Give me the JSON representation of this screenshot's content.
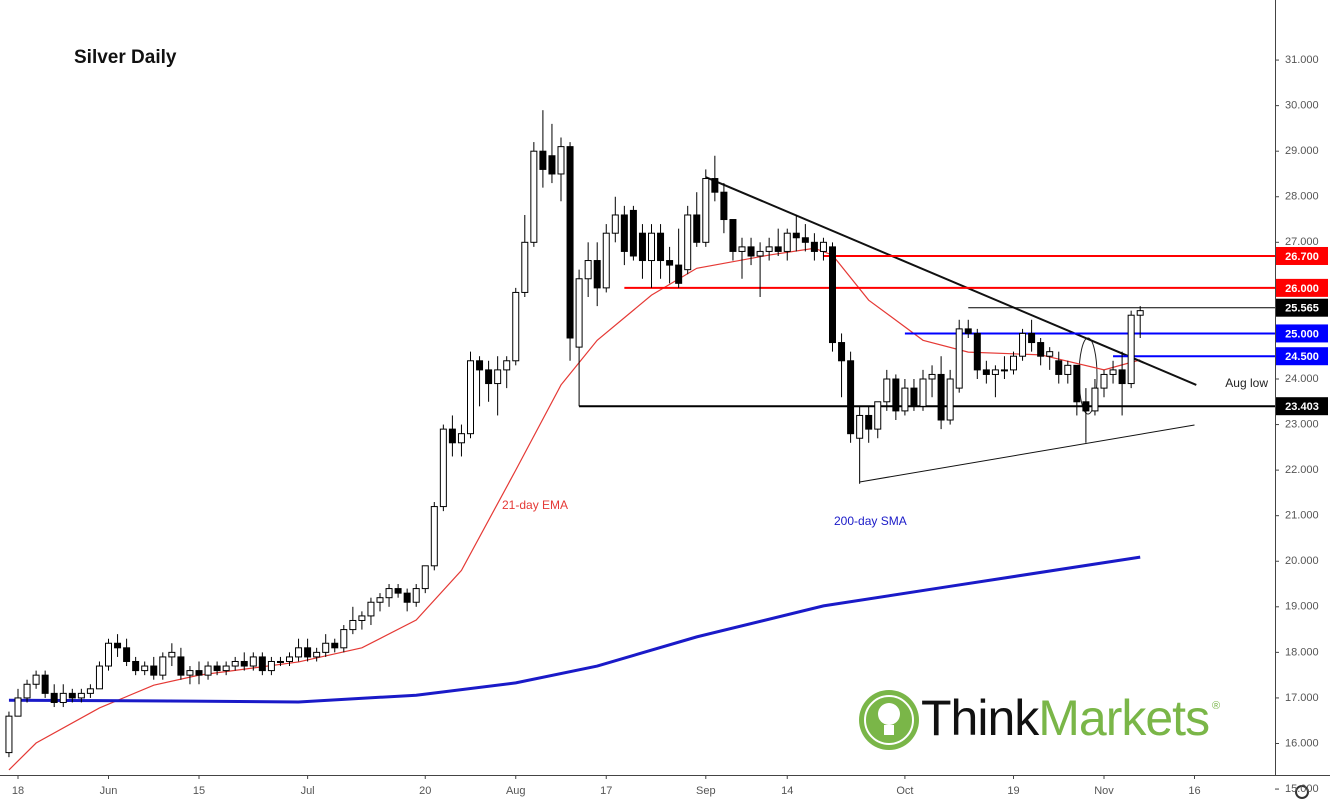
{
  "chart_data": {
    "type": "candlestick",
    "title": "Silver Daily",
    "categories": [
      null,
      "18",
      null,
      null,
      null,
      null,
      null,
      null,
      null,
      null,
      null,
      "Jun",
      null,
      null,
      null,
      null,
      null,
      null,
      null,
      null,
      null,
      "15",
      null,
      null,
      null,
      null,
      null,
      null,
      null,
      null,
      null,
      null,
      null,
      "Jul",
      null,
      null,
      null,
      null,
      null,
      null,
      null,
      null,
      null,
      null,
      null,
      null,
      "20",
      null,
      null,
      null,
      null,
      null,
      null,
      null,
      null,
      null,
      "Aug",
      null,
      null,
      null,
      null,
      null,
      null,
      null,
      null,
      null,
      "17",
      null,
      null,
      null,
      null,
      null,
      null,
      null,
      null,
      null,
      null,
      "Sep",
      null,
      null,
      null,
      null,
      null,
      null,
      null,
      null,
      "14",
      null,
      null,
      null,
      null,
      null,
      null,
      null,
      null,
      null,
      null,
      null,
      null,
      "Oct",
      null,
      null,
      null,
      null,
      null,
      null,
      null,
      null,
      null,
      null,
      null,
      "19",
      null,
      null,
      null,
      null,
      null,
      null,
      null,
      null,
      null,
      "Nov",
      null,
      null,
      null,
      null,
      null,
      null,
      null,
      null,
      null,
      "16"
    ],
    "open": [
      15.8,
      16.6,
      17.0,
      17.3,
      17.5,
      17.1,
      16.9,
      17.1,
      17.0,
      17.1,
      17.2,
      17.7,
      18.2,
      18.1,
      17.8,
      17.6,
      17.7,
      17.5,
      17.9,
      17.9,
      17.5,
      17.6,
      17.5,
      17.7,
      17.6,
      17.7,
      17.8,
      17.7,
      17.9,
      17.6,
      17.8,
      17.8,
      17.9,
      18.1,
      17.9,
      18.0,
      18.2,
      18.1,
      18.5,
      18.7,
      18.8,
      19.1,
      19.2,
      19.4,
      19.3,
      19.1,
      19.4,
      19.9,
      21.2,
      22.9,
      22.6,
      22.8,
      24.4,
      24.2,
      23.9,
      24.2,
      24.4,
      25.9,
      27.0,
      29.0,
      28.9,
      28.5,
      29.1,
      24.7,
      26.2,
      26.6,
      26.0,
      27.2,
      27.6,
      27.7,
      27.2,
      26.6,
      27.2,
      26.6,
      26.5,
      26.4,
      27.6,
      27.0,
      28.4,
      28.1,
      27.5,
      26.8,
      26.9,
      26.7,
      26.8,
      26.9,
      26.8,
      27.2,
      27.1,
      27.0,
      26.8,
      26.9,
      24.8,
      24.4,
      22.7,
      23.2,
      22.9,
      23.5,
      24.0,
      23.3,
      23.8,
      23.4,
      24.0,
      24.1,
      23.1,
      23.8,
      25.1,
      25.0,
      24.2,
      24.1,
      24.2,
      24.2,
      24.5,
      25.0,
      24.8,
      24.5,
      24.4,
      24.1,
      24.3,
      23.5,
      23.3,
      23.8,
      24.1,
      24.2,
      23.9,
      25.4,
      null,
      null,
      null,
      null,
      null,
      null
    ],
    "high": [
      16.7,
      17.2,
      17.4,
      17.6,
      17.6,
      17.3,
      17.3,
      17.2,
      17.2,
      17.3,
      17.8,
      18.3,
      18.4,
      18.3,
      17.9,
      17.8,
      17.9,
      18.0,
      18.2,
      18.1,
      17.7,
      17.8,
      17.8,
      17.8,
      17.8,
      17.9,
      18.0,
      18.0,
      18.0,
      17.9,
      17.9,
      18.0,
      18.3,
      18.3,
      18.1,
      18.4,
      18.3,
      18.6,
      19.0,
      18.9,
      19.2,
      19.3,
      19.5,
      19.5,
      19.4,
      19.5,
      19.9,
      21.3,
      23.0,
      23.2,
      23.0,
      24.6,
      24.5,
      24.4,
      24.5,
      24.5,
      26.0,
      27.6,
      29.2,
      29.9,
      29.6,
      29.3,
      29.2,
      26.4,
      27.0,
      27.0,
      27.4,
      28.0,
      27.8,
      27.8,
      27.4,
      27.4,
      27.4,
      26.9,
      27.3,
      27.8,
      28.1,
      28.6,
      28.9,
      28.3,
      27.5,
      27.1,
      27.1,
      27.0,
      27.1,
      27.3,
      27.3,
      27.6,
      27.4,
      27.2,
      27.1,
      27.0,
      25.0,
      24.6,
      23.4,
      23.4,
      23.5,
      24.2,
      24.1,
      24.0,
      24.0,
      24.2,
      24.3,
      24.5,
      24.2,
      25.3,
      25.3,
      25.1,
      24.4,
      24.3,
      24.5,
      24.6,
      25.1,
      25.3,
      24.9,
      24.7,
      24.6,
      24.4,
      24.3,
      23.8,
      24.0,
      24.2,
      24.4,
      24.6,
      25.5,
      25.6,
      null,
      null,
      null,
      null,
      null,
      null
    ],
    "low": [
      15.7,
      16.6,
      16.9,
      17.2,
      17.0,
      16.8,
      16.8,
      16.9,
      16.9,
      17.0,
      17.2,
      17.6,
      17.9,
      17.7,
      17.5,
      17.5,
      17.4,
      17.4,
      17.7,
      17.4,
      17.3,
      17.3,
      17.4,
      17.5,
      17.5,
      17.6,
      17.6,
      17.6,
      17.5,
      17.5,
      17.7,
      17.7,
      17.8,
      17.8,
      17.8,
      17.9,
      18.0,
      18.0,
      18.4,
      18.5,
      18.6,
      18.9,
      19.0,
      19.2,
      18.9,
      19.0,
      19.3,
      19.8,
      21.1,
      22.3,
      22.3,
      22.7,
      23.4,
      23.5,
      23.2,
      23.8,
      24.3,
      25.8,
      26.9,
      28.2,
      28.3,
      27.9,
      24.4,
      23.403,
      25.8,
      25.6,
      25.9,
      27.0,
      26.5,
      26.6,
      26.2,
      26.0,
      26.2,
      26.1,
      26.0,
      26.3,
      26.9,
      26.9,
      27.9,
      27.2,
      26.6,
      26.2,
      26.5,
      25.8,
      26.6,
      26.7,
      26.6,
      26.8,
      26.8,
      26.6,
      26.6,
      24.6,
      23.6,
      22.6,
      21.7,
      22.6,
      22.7,
      23.3,
      23.1,
      23.2,
      23.3,
      23.3,
      23.6,
      22.9,
      23.0,
      23.7,
      24.9,
      24.0,
      23.9,
      23.6,
      24.0,
      24.1,
      24.4,
      24.6,
      24.3,
      24.2,
      23.9,
      23.9,
      23.2,
      22.6,
      23.2,
      23.6,
      23.9,
      23.2,
      23.8,
      24.9,
      null,
      null,
      null,
      null,
      null,
      null
    ],
    "close": [
      16.6,
      17.0,
      17.3,
      17.5,
      17.1,
      16.9,
      17.1,
      17.0,
      17.1,
      17.2,
      17.7,
      18.2,
      18.1,
      17.8,
      17.6,
      17.7,
      17.5,
      17.9,
      18.0,
      17.5,
      17.6,
      17.5,
      17.7,
      17.6,
      17.7,
      17.8,
      17.7,
      17.9,
      17.6,
      17.8,
      17.8,
      17.9,
      18.1,
      17.9,
      18.0,
      18.2,
      18.1,
      18.5,
      18.7,
      18.8,
      19.1,
      19.2,
      19.4,
      19.3,
      19.1,
      19.4,
      19.9,
      21.2,
      22.9,
      22.6,
      22.8,
      24.4,
      24.2,
      23.9,
      24.2,
      24.4,
      25.9,
      27.0,
      29.0,
      28.6,
      28.5,
      29.1,
      24.9,
      26.2,
      26.6,
      26.0,
      27.2,
      27.6,
      26.8,
      26.7,
      26.6,
      27.2,
      26.6,
      26.5,
      26.1,
      27.6,
      27.0,
      28.4,
      28.1,
      27.5,
      26.8,
      26.9,
      26.7,
      26.8,
      26.9,
      26.8,
      27.2,
      27.1,
      27.0,
      26.8,
      27.0,
      24.8,
      24.4,
      22.8,
      23.2,
      22.9,
      23.5,
      24.0,
      23.3,
      23.8,
      23.4,
      24.0,
      24.1,
      23.1,
      24.0,
      25.1,
      25.0,
      24.2,
      24.1,
      24.2,
      24.2,
      24.5,
      25.0,
      24.8,
      24.5,
      24.6,
      24.1,
      24.3,
      23.5,
      23.3,
      23.8,
      24.1,
      24.2,
      23.9,
      25.4,
      25.5,
      null,
      null,
      null,
      null,
      null,
      null
    ],
    "series": [
      {
        "name": "21-day EMA",
        "color": "#e53935",
        "width": 1.2,
        "x": [
          0,
          3,
          10,
          16,
          21,
          32,
          39,
          45,
          50,
          56,
          61,
          65,
          71,
          76,
          84,
          89,
          91,
          95,
          101,
          106,
          114,
          121,
          125
        ],
        "values": [
          15.42,
          16.01,
          16.78,
          17.28,
          17.5,
          17.79,
          18.1,
          18.71,
          19.8,
          22.0,
          23.87,
          24.85,
          25.84,
          26.43,
          26.72,
          26.87,
          26.72,
          25.73,
          24.85,
          24.59,
          24.53,
          24.2,
          24.42
        ]
      },
      {
        "name": "200-day SMA",
        "color": "#1a1ac8",
        "width": 3,
        "x": [
          0,
          20,
          32,
          45,
          56,
          65,
          76,
          90,
          104,
          125
        ],
        "values": [
          16.95,
          16.93,
          16.91,
          17.06,
          17.33,
          17.7,
          18.34,
          19.02,
          19.45,
          20.09
        ]
      }
    ],
    "levels": [
      {
        "value": 26.7,
        "label": "26.700",
        "color": "#ff0000",
        "start": 90
      },
      {
        "value": 26.0,
        "label": "26.000",
        "color": "#ff0000",
        "start": 68
      },
      {
        "value": 25.565,
        "label": "25.565",
        "color": "#000000",
        "start": 106
      },
      {
        "value": 25.0,
        "label": "25.000",
        "color": "#0000ff",
        "start": 99
      },
      {
        "value": 24.5,
        "label": "24.500",
        "color": "#0000ff",
        "start": 122
      },
      {
        "value": 23.403,
        "label": "23.403",
        "color": "#000000",
        "start": 63
      }
    ],
    "trendlines": [
      {
        "x": [
          77,
          131.2
        ],
        "values": [
          28.43,
          23.87
        ],
        "width": 2
      },
      {
        "x": [
          94,
          131
        ],
        "values": [
          21.74,
          22.99
        ],
        "width": 1
      }
    ],
    "annotations": [
      "Aug low"
    ],
    "watermark": "ThinkMarkets",
    "ylim": [
      14.65,
      31.66
    ],
    "yticks": [
      {
        "value": 15,
        "label": "15.000"
      },
      {
        "value": 16,
        "label": "16.000"
      },
      {
        "value": 17,
        "label": "17.000"
      },
      {
        "value": 18,
        "label": "18.000"
      },
      {
        "value": 19,
        "label": "19.000"
      },
      {
        "value": 20,
        "label": "20.000"
      },
      {
        "value": 21,
        "label": "21.000"
      },
      {
        "value": 22,
        "label": "22.000"
      },
      {
        "value": 23,
        "label": "23.000"
      },
      {
        "value": 24,
        "label": "24.000"
      },
      {
        "value": 25,
        "label": "25.000"
      },
      {
        "value": 26,
        "label": "26.000"
      },
      {
        "value": 27,
        "label": "27.000"
      },
      {
        "value": 28,
        "label": "28.000"
      },
      {
        "value": 29,
        "label": "29.000"
      },
      {
        "value": 30,
        "label": "30.000"
      },
      {
        "value": 31,
        "label": "31.000"
      }
    ]
  }
}
